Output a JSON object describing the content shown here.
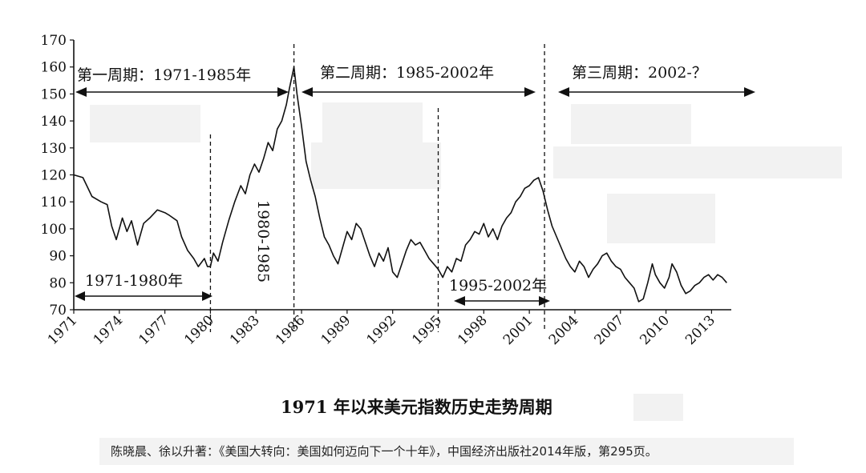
{
  "chart_data": {
    "type": "line",
    "title": "1971 年以来美元指数历史走势周期",
    "source_caption": "陈晓晨、徐以升著：《美国大转向：美国如何迈向下一个十年》，中国经济出版社2014年版，第295页。",
    "xlabel": "",
    "ylabel": "",
    "xlim": [
      1971,
      2014.3
    ],
    "ylim": [
      70,
      170
    ],
    "yticks": [
      70,
      80,
      90,
      100,
      110,
      120,
      130,
      140,
      150,
      160,
      170
    ],
    "xticks": [
      1971,
      1974,
      1977,
      1980,
      1983,
      1986,
      1989,
      1992,
      1995,
      1998,
      2001,
      2004,
      2007,
      2010,
      2013
    ],
    "grid": false,
    "legend": "none",
    "series": [
      {
        "x": [
          1971.0,
          1971.6,
          1972.2,
          1972.8,
          1973.2,
          1973.5,
          1973.8,
          1974.2,
          1974.5,
          1974.8,
          1975.2,
          1975.6,
          1976.0,
          1976.5,
          1977.0,
          1977.3,
          1977.8,
          1978.1,
          1978.5,
          1978.9,
          1979.2,
          1979.6,
          1979.8,
          1980.0,
          1980.2,
          1980.5,
          1980.8,
          1981.2,
          1981.6,
          1982.0,
          1982.3,
          1982.6,
          1982.9,
          1983.2,
          1983.5,
          1983.8,
          1984.1,
          1984.4,
          1984.7,
          1985.0,
          1985.2,
          1985.5,
          1985.7,
          1986.0,
          1986.3,
          1986.6,
          1986.9,
          1987.2,
          1987.5,
          1987.8,
          1988.1,
          1988.4,
          1988.7,
          1989.0,
          1989.3,
          1989.6,
          1989.9,
          1990.2,
          1990.5,
          1990.8,
          1991.1,
          1991.4,
          1991.7,
          1992.0,
          1992.3,
          1992.6,
          1992.9,
          1993.2,
          1993.5,
          1993.8,
          1994.1,
          1994.4,
          1994.7,
          1995.0,
          1995.3,
          1995.6,
          1995.9,
          1996.2,
          1996.5,
          1996.8,
          1997.1,
          1997.4,
          1997.7,
          1998.0,
          1998.3,
          1998.6,
          1998.9,
          1999.2,
          1999.5,
          1999.8,
          2000.1,
          2000.4,
          2000.7,
          2001.0,
          2001.3,
          2001.6,
          2001.9,
          2002.2,
          2002.5,
          2002.8,
          2003.1,
          2003.4,
          2003.7,
          2004.0,
          2004.3,
          2004.6,
          2004.9,
          2005.2,
          2005.5,
          2005.8,
          2006.1,
          2006.4,
          2006.7,
          2007.0,
          2007.3,
          2007.6,
          2007.9,
          2008.2,
          2008.5,
          2008.8,
          2009.1,
          2009.3,
          2009.6,
          2009.9,
          2010.2,
          2010.4,
          2010.7,
          2011.0,
          2011.3,
          2011.6,
          2011.9,
          2012.2,
          2012.5,
          2012.8,
          2013.1,
          2013.4,
          2013.7,
          2014.0
        ],
        "values": [
          120,
          119,
          112,
          110,
          109,
          101,
          96,
          104,
          99,
          103,
          94,
          102,
          104,
          107,
          106,
          105,
          103,
          97,
          92,
          89,
          86,
          89,
          86,
          86,
          91,
          88,
          95,
          103,
          110,
          116,
          113,
          120,
          124,
          121,
          126,
          132,
          129,
          137,
          140,
          146,
          152,
          160,
          150,
          138,
          125,
          118,
          112,
          104,
          97,
          94,
          90,
          87,
          93,
          99,
          96,
          102,
          100,
          95,
          90,
          86,
          91,
          88,
          93,
          84,
          82,
          87,
          92,
          96,
          94,
          95,
          92,
          89,
          87,
          85,
          82,
          86,
          84,
          89,
          88,
          94,
          96,
          99,
          98,
          102,
          97,
          100,
          96,
          101,
          104,
          106,
          110,
          112,
          115,
          116,
          118,
          119,
          114,
          107,
          101,
          97,
          93,
          89,
          86,
          84,
          88,
          86,
          82,
          85,
          87,
          90,
          91,
          88,
          86,
          85,
          82,
          80,
          78,
          73,
          74,
          80,
          87,
          83,
          80,
          78,
          82,
          87,
          84,
          79,
          76,
          77,
          79,
          80,
          82,
          83,
          81,
          83,
          82,
          80
        ]
      }
    ],
    "dividers": [
      1985.5,
      1980.0,
      1995.0,
      2002.0
    ],
    "annotations": {
      "cycle1": "第一周期：1971-1985年",
      "cycle2": "第二周期：1985-2002年",
      "cycle3": "第三周期：2002-？",
      "span_1971_1980": "1971-1980年",
      "span_1980_1985": "1980-1985",
      "span_1995_2002": "1995-2002年"
    }
  }
}
